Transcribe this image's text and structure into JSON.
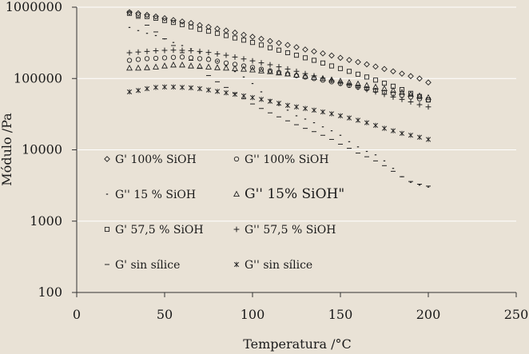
{
  "chart_data": {
    "type": "scatter",
    "title": "",
    "xlabel": "Temperatura /°C",
    "ylabel": "Módulo /Pa",
    "xlim": [
      0,
      250
    ],
    "ylim": [
      100,
      1000000
    ],
    "yscale": "log",
    "x_ticks": [
      "0",
      "50",
      "100",
      "150",
      "200",
      "250"
    ],
    "y_ticks": [
      "100",
      "1000",
      "10000",
      "100000",
      "1000000"
    ],
    "grid": "horizontal",
    "legend_position": "inside-left",
    "series": [
      {
        "name": "G' 100% SiOH",
        "marker": "diamond",
        "x": [
          30,
          35,
          40,
          45,
          50,
          55,
          60,
          65,
          70,
          75,
          80,
          85,
          90,
          95,
          100,
          105,
          110,
          115,
          120,
          125,
          130,
          135,
          140,
          145,
          150,
          155,
          160,
          165,
          170,
          175,
          180,
          185,
          190,
          195,
          200
        ],
        "y": [
          850000,
          820000,
          780000,
          740000,
          700000,
          660000,
          630000,
          600000,
          560000,
          530000,
          500000,
          470000,
          440000,
          410000,
          385000,
          360000,
          335000,
          315000,
          295000,
          275000,
          255000,
          240000,
          225000,
          210000,
          195000,
          182000,
          170000,
          158000,
          147000,
          136000,
          126000,
          117000,
          108000,
          100000,
          88000
        ]
      },
      {
        "name": "G'' 100% SiOH",
        "marker": "circle",
        "x": [
          30,
          35,
          40,
          45,
          50,
          55,
          60,
          65,
          70,
          75,
          80,
          85,
          90,
          95,
          100,
          105,
          110,
          115,
          120,
          125,
          130,
          135,
          140,
          145,
          150,
          155,
          160,
          165,
          170,
          175,
          180,
          185,
          190,
          195,
          200
        ],
        "y": [
          180000,
          185000,
          190000,
          192000,
          195000,
          198000,
          200000,
          195000,
          190000,
          185000,
          175000,
          165000,
          158000,
          150000,
          143000,
          135000,
          128000,
          122000,
          116000,
          110000,
          105000,
          100000,
          95000,
          90000,
          85000,
          80000,
          76000,
          72000,
          68000,
          64000,
          61000,
          58000,
          55000,
          52000,
          50000
        ]
      },
      {
        "name": "G'' 15 % SiOH",
        "marker": "dot",
        "x": [
          30,
          35,
          40,
          45,
          50,
          55,
          60,
          65,
          70,
          75,
          80,
          85,
          90,
          95,
          100,
          105,
          110,
          115,
          120,
          125,
          130,
          135,
          140,
          145,
          150,
          155,
          160,
          165,
          170,
          175,
          180,
          185,
          190,
          195,
          200
        ],
        "y": [
          520000,
          470000,
          430000,
          400000,
          360000,
          320000,
          290000,
          260000,
          230000,
          200000,
          175000,
          150000,
          125000,
          105000,
          85000,
          65000,
          50000,
          42000,
          36000,
          30000,
          27000,
          24000,
          21000,
          18500,
          16000,
          13000,
          11000,
          9500,
          8500,
          7000,
          5500,
          4200,
          3500,
          3200,
          3000
        ]
      },
      {
        "name": "G'' 15% SiOH\"",
        "marker": "triangle",
        "x": [
          30,
          35,
          40,
          45,
          50,
          55,
          60,
          65,
          70,
          75,
          80,
          85,
          90,
          95,
          100,
          105,
          110,
          115,
          120,
          125,
          130,
          135,
          140,
          145,
          150,
          155,
          160,
          165,
          170,
          175,
          180,
          185,
          190,
          195,
          200
        ],
        "y": [
          140000,
          140000,
          142000,
          145000,
          150000,
          155000,
          155000,
          150000,
          148000,
          145000,
          142000,
          140000,
          138000,
          135000,
          132000,
          128000,
          125000,
          120000,
          116000,
          112000,
          108000,
          104000,
          100000,
          96000,
          92000,
          88000,
          84000,
          80000,
          76000,
          72000,
          68000,
          64000,
          60000,
          57000,
          54000
        ]
      },
      {
        "name": "G' 57,5 % SiOH",
        "marker": "square",
        "x": [
          30,
          35,
          40,
          45,
          50,
          55,
          60,
          65,
          70,
          75,
          80,
          85,
          90,
          95,
          100,
          105,
          110,
          115,
          120,
          125,
          130,
          135,
          140,
          145,
          150,
          155,
          160,
          165,
          170,
          175,
          180,
          185,
          190,
          195,
          200
        ],
        "y": [
          820000,
          780000,
          740000,
          700000,
          650000,
          610000,
          570000,
          530000,
          490000,
          460000,
          430000,
          400000,
          370000,
          345000,
          320000,
          295000,
          270000,
          250000,
          230000,
          212000,
          195000,
          180000,
          165000,
          150000,
          138000,
          126000,
          115000,
          105000,
          95000,
          86000,
          78000,
          70000,
          62000,
          56000,
          50000
        ]
      },
      {
        "name": "G'' 57,5 % SiOH",
        "marker": "plus",
        "x": [
          30,
          35,
          40,
          45,
          50,
          55,
          60,
          65,
          70,
          75,
          80,
          85,
          90,
          95,
          100,
          105,
          110,
          115,
          120,
          125,
          130,
          135,
          140,
          145,
          150,
          155,
          160,
          165,
          170,
          175,
          180,
          185,
          190,
          195,
          200
        ],
        "y": [
          230000,
          235000,
          240000,
          245000,
          248000,
          250000,
          248000,
          245000,
          240000,
          232000,
          222000,
          212000,
          200000,
          188000,
          177000,
          166000,
          156000,
          146000,
          136000,
          126000,
          117000,
          109000,
          101000,
          94000,
          87000,
          81000,
          75000,
          70000,
          65000,
          60000,
          55000,
          51000,
          47000,
          43000,
          40000
        ]
      },
      {
        "name": "G' sin sílice",
        "marker": "dash",
        "x": [
          30,
          35,
          40,
          45,
          50,
          55,
          60,
          65,
          70,
          75,
          80,
          85,
          90,
          95,
          100,
          105,
          110,
          115,
          120,
          125,
          130,
          135,
          140,
          145,
          150,
          155,
          160,
          165,
          170,
          175,
          180,
          185,
          190,
          195,
          200
        ],
        "y": [
          850000,
          700000,
          560000,
          450000,
          360000,
          290000,
          230000,
          180000,
          140000,
          110000,
          90000,
          75000,
          62000,
          52000,
          44000,
          38000,
          33000,
          29000,
          25500,
          22500,
          20000,
          18000,
          16000,
          14000,
          12000,
          10500,
          9000,
          8000,
          7000,
          6000,
          5000,
          4200,
          3600,
          3300,
          3100
        ]
      },
      {
        "name": "G'' sin sílice",
        "marker": "star",
        "x": [
          30,
          35,
          40,
          45,
          50,
          55,
          60,
          65,
          70,
          75,
          80,
          85,
          90,
          95,
          100,
          105,
          110,
          115,
          120,
          125,
          130,
          135,
          140,
          145,
          150,
          155,
          160,
          165,
          170,
          175,
          180,
          185,
          190,
          195,
          200
        ],
        "y": [
          65000,
          68000,
          72000,
          75000,
          76000,
          76000,
          75000,
          74000,
          72000,
          69000,
          66000,
          63000,
          60000,
          57000,
          54000,
          51000,
          48000,
          45000,
          42000,
          40000,
          38000,
          36000,
          34000,
          32000,
          30000,
          28000,
          26000,
          24000,
          22000,
          20000,
          18500,
          17000,
          16000,
          15000,
          14000
        ]
      }
    ]
  }
}
